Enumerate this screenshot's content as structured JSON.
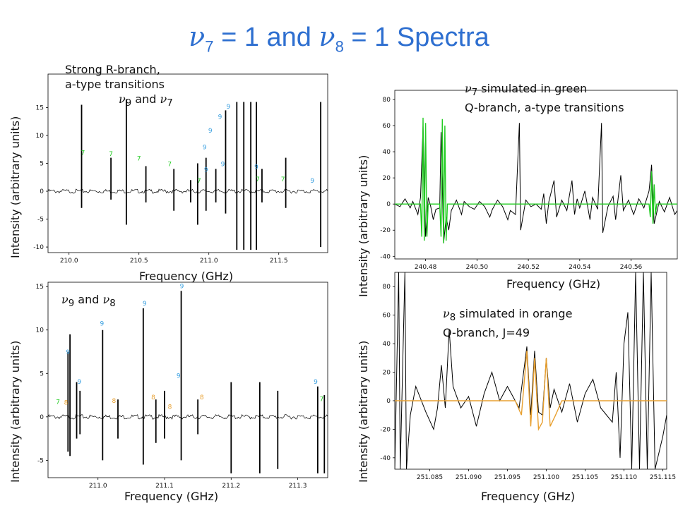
{
  "title": {
    "p1": "ν",
    "s1": "7",
    "p2": " = 1 and ",
    "p3": "ν",
    "s2": "8",
    "p4": " = 1   Spectra"
  },
  "annotations": {
    "a1_l1": "Strong R-branch,",
    "a1_l2": "a-type transitions",
    "a1_nu1": "ν",
    "a1_s1": "9",
    "a1_and": " and ",
    "a1_nu2": "ν",
    "a1_s2": "7",
    "a2_nu": "ν",
    "a2_s": "7",
    "a2_rest": " simulated in green",
    "a2_l2": "Q-branch, a-type transitions",
    "a3_nu1": "ν",
    "a3_s1": "9",
    "a3_and": " and ",
    "a3_nu2": "ν",
    "a3_s2": "8",
    "a4_nu": "ν",
    "a4_s": "8",
    "a4_rest": " simulated in orange",
    "a4_l2": "Q-branch, J=49"
  },
  "colors": {
    "title": "#2e6fd0",
    "green": "#22cc22",
    "orange": "#e8a030",
    "blue": "#3aa0e0",
    "trace": "#000000"
  },
  "chart_data": [
    {
      "type": "line",
      "id": "top-left",
      "xlabel": "Frequency (GHz)",
      "ylabel": "Intensity (arbitrary units)",
      "xlim": [
        209.85,
        211.85
      ],
      "ylim": [
        -11,
        21
      ],
      "xticks": [
        210.0,
        210.5,
        211.0,
        211.5
      ],
      "xtick_labels": [
        "210.0",
        "210.5",
        "211.0",
        "211.5"
      ],
      "yticks": [
        -10,
        -5,
        0,
        5,
        10,
        15
      ],
      "lines": [
        {
          "x": 210.09,
          "y": [
            -3,
            15.5
          ]
        },
        {
          "x": 210.3,
          "y": [
            -1.5,
            6
          ]
        },
        {
          "x": 210.41,
          "y": [
            -6,
            16.5
          ]
        },
        {
          "x": 210.55,
          "y": [
            -2,
            4.5
          ]
        },
        {
          "x": 210.75,
          "y": [
            -3.5,
            4
          ]
        },
        {
          "x": 210.87,
          "y": [
            -2,
            2
          ]
        },
        {
          "x": 210.92,
          "y": [
            -6,
            5
          ]
        },
        {
          "x": 210.98,
          "y": [
            -3.5,
            6
          ]
        },
        {
          "x": 211.05,
          "y": [
            -2,
            4
          ]
        },
        {
          "x": 211.12,
          "y": [
            -4,
            14.5
          ]
        },
        {
          "x": 211.2,
          "y": [
            -10.5,
            16
          ]
        },
        {
          "x": 211.25,
          "y": [
            -10.5,
            16
          ]
        },
        {
          "x": 211.3,
          "y": [
            -10.5,
            16
          ]
        },
        {
          "x": 211.34,
          "y": [
            -10.5,
            16
          ]
        },
        {
          "x": 211.38,
          "y": [
            -2,
            4
          ]
        },
        {
          "x": 211.55,
          "y": [
            -3,
            6
          ]
        },
        {
          "x": 211.8,
          "y": [
            -10,
            16
          ]
        }
      ],
      "labels": [
        {
          "t": "7",
          "x": 210.1,
          "y": 6.5,
          "c": "green"
        },
        {
          "t": "7",
          "x": 210.3,
          "y": 6.3,
          "c": "green"
        },
        {
          "t": "7",
          "x": 210.5,
          "y": 5.5,
          "c": "green"
        },
        {
          "t": "7",
          "x": 210.72,
          "y": 4.5,
          "c": "green"
        },
        {
          "t": "7",
          "x": 210.93,
          "y": 1.5,
          "c": "green"
        },
        {
          "t": "9",
          "x": 210.98,
          "y": 3.5,
          "c": "blue"
        },
        {
          "t": "9",
          "x": 210.97,
          "y": 7.5,
          "c": "blue"
        },
        {
          "t": "9",
          "x": 211.01,
          "y": 10.5,
          "c": "blue"
        },
        {
          "t": "9",
          "x": 211.08,
          "y": 13.0,
          "c": "blue"
        },
        {
          "t": "9",
          "x": 211.14,
          "y": 14.8,
          "c": "blue"
        },
        {
          "t": "9",
          "x": 211.1,
          "y": 4.5,
          "c": "blue"
        },
        {
          "t": "9",
          "x": 211.34,
          "y": 4.0,
          "c": "blue"
        },
        {
          "t": "7",
          "x": 211.35,
          "y": 1.8,
          "c": "green"
        },
        {
          "t": "7",
          "x": 211.53,
          "y": 1.8,
          "c": "green"
        },
        {
          "t": "9",
          "x": 211.74,
          "y": 1.5,
          "c": "blue"
        }
      ]
    },
    {
      "type": "line",
      "id": "bottom-left",
      "xlabel": "Frequency (GHz)",
      "ylabel": "Intensity (arbitrary units)",
      "xlim": [
        210.925,
        211.345
      ],
      "ylim": [
        -7,
        15.5
      ],
      "xticks": [
        211.0,
        211.1,
        211.2,
        211.3
      ],
      "xtick_labels": [
        "211.0",
        "211.1",
        "211.2",
        "211.3"
      ],
      "yticks": [
        -5,
        0,
        5,
        10,
        15
      ],
      "lines": [
        {
          "x": 210.955,
          "y": [
            -4,
            7.5
          ]
        },
        {
          "x": 210.958,
          "y": [
            -4.5,
            9.5
          ]
        },
        {
          "x": 210.968,
          "y": [
            -2.5,
            4
          ]
        },
        {
          "x": 210.973,
          "y": [
            -2,
            3
          ]
        },
        {
          "x": 211.007,
          "y": [
            -5,
            10
          ]
        },
        {
          "x": 211.03,
          "y": [
            -2.5,
            2
          ]
        },
        {
          "x": 211.068,
          "y": [
            -5.5,
            12.5
          ]
        },
        {
          "x": 211.087,
          "y": [
            -3,
            2
          ]
        },
        {
          "x": 211.1,
          "y": [
            -2.5,
            3
          ]
        },
        {
          "x": 211.125,
          "y": [
            -5,
            14.5
          ]
        },
        {
          "x": 211.15,
          "y": [
            -2,
            2
          ]
        },
        {
          "x": 211.2,
          "y": [
            -6.5,
            4
          ]
        },
        {
          "x": 211.243,
          "y": [
            -6.5,
            4
          ]
        },
        {
          "x": 211.27,
          "y": [
            -6,
            3
          ]
        },
        {
          "x": 211.33,
          "y": [
            -6.5,
            3.5
          ]
        },
        {
          "x": 211.34,
          "y": [
            -6.5,
            2.5
          ]
        }
      ],
      "labels": [
        {
          "t": "9",
          "x": 210.955,
          "y": 7.2,
          "c": "blue"
        },
        {
          "t": "9",
          "x": 210.972,
          "y": 3.8,
          "c": "blue"
        },
        {
          "t": "9",
          "x": 211.006,
          "y": 10.5,
          "c": "blue"
        },
        {
          "t": "9",
          "x": 211.07,
          "y": 12.8,
          "c": "blue"
        },
        {
          "t": "9",
          "x": 211.126,
          "y": 14.8,
          "c": "blue"
        },
        {
          "t": "9",
          "x": 211.121,
          "y": 4.5,
          "c": "blue"
        },
        {
          "t": "9",
          "x": 211.327,
          "y": 3.8,
          "c": "blue"
        },
        {
          "t": "7",
          "x": 210.94,
          "y": 1.5,
          "c": "green"
        },
        {
          "t": "7",
          "x": 211.336,
          "y": 1.8,
          "c": "green"
        },
        {
          "t": "8",
          "x": 210.952,
          "y": 1.4,
          "c": "orange"
        },
        {
          "t": "8",
          "x": 211.024,
          "y": 1.6,
          "c": "orange"
        },
        {
          "t": "8",
          "x": 211.083,
          "y": 2.0,
          "c": "orange"
        },
        {
          "t": "8",
          "x": 211.108,
          "y": 0.9,
          "c": "orange"
        },
        {
          "t": "8",
          "x": 211.156,
          "y": 2.0,
          "c": "orange"
        }
      ]
    },
    {
      "type": "line",
      "id": "top-right",
      "xlabel": "Frequency (GHz)",
      "ylabel": "Intensity (arbitrary units)",
      "xlim": [
        240.468,
        240.578
      ],
      "ylim": [
        -42,
        87
      ],
      "xticks": [
        240.48,
        240.5,
        240.52,
        240.54,
        240.56
      ],
      "xtick_labels": [
        "240.48",
        "240.50",
        "240.52",
        "240.54",
        "240.56"
      ],
      "yticks": [
        -40,
        -20,
        0,
        20,
        40,
        60,
        80
      ],
      "observed": [
        [
          240.468,
          0
        ],
        [
          240.47,
          -2
        ],
        [
          240.472,
          4
        ],
        [
          240.474,
          -3
        ],
        [
          240.475,
          2
        ],
        [
          240.477,
          -8
        ],
        [
          240.478,
          5
        ],
        [
          240.479,
          60
        ],
        [
          240.48,
          -25
        ],
        [
          240.481,
          5
        ],
        [
          240.482,
          -2
        ],
        [
          240.483,
          -12
        ],
        [
          240.484,
          -4
        ],
        [
          240.4855,
          -3
        ],
        [
          240.486,
          55
        ],
        [
          240.487,
          -30
        ],
        [
          240.488,
          -10
        ],
        [
          240.489,
          -20
        ],
        [
          240.49,
          -5
        ],
        [
          240.492,
          3
        ],
        [
          240.494,
          -8
        ],
        [
          240.495,
          2
        ],
        [
          240.497,
          -2
        ],
        [
          240.499,
          -4
        ],
        [
          240.501,
          2
        ],
        [
          240.503,
          -2
        ],
        [
          240.505,
          -10
        ],
        [
          240.506,
          -4
        ],
        [
          240.508,
          3
        ],
        [
          240.51,
          -2
        ],
        [
          240.512,
          -12
        ],
        [
          240.513,
          -5
        ],
        [
          240.515,
          -8
        ],
        [
          240.5165,
          62
        ],
        [
          240.517,
          -20
        ],
        [
          240.519,
          3
        ],
        [
          240.521,
          -2
        ],
        [
          240.523,
          0
        ],
        [
          240.525,
          -4
        ],
        [
          240.526,
          8
        ],
        [
          240.527,
          -15
        ],
        [
          240.528,
          2
        ],
        [
          240.53,
          18
        ],
        [
          240.531,
          -10
        ],
        [
          240.533,
          3
        ],
        [
          240.535,
          -5
        ],
        [
          240.537,
          18
        ],
        [
          240.538,
          -8
        ],
        [
          240.539,
          4
        ],
        [
          240.54,
          -3
        ],
        [
          240.542,
          10
        ],
        [
          240.544,
          -12
        ],
        [
          240.545,
          5
        ],
        [
          240.547,
          -4
        ],
        [
          240.5485,
          62
        ],
        [
          240.549,
          -22
        ],
        [
          240.551,
          -2
        ],
        [
          240.553,
          6
        ],
        [
          240.554,
          -12
        ],
        [
          240.556,
          22
        ],
        [
          240.557,
          -5
        ],
        [
          240.559,
          3
        ],
        [
          240.561,
          -8
        ],
        [
          240.563,
          4
        ],
        [
          240.565,
          -3
        ],
        [
          240.567,
          10
        ],
        [
          240.568,
          30
        ],
        [
          240.569,
          -15
        ],
        [
          240.571,
          2
        ],
        [
          240.573,
          -6
        ],
        [
          240.575,
          5
        ],
        [
          240.577,
          -8
        ],
        [
          240.578,
          -5
        ]
      ],
      "simulated": {
        "color": "green",
        "points": [
          [
            240.468,
            0
          ],
          [
            240.478,
            0
          ],
          [
            240.4785,
            -25
          ],
          [
            240.479,
            66
          ],
          [
            240.4795,
            -28
          ],
          [
            240.48,
            62
          ],
          [
            240.4805,
            -25
          ],
          [
            240.481,
            0
          ],
          [
            240.4855,
            0
          ],
          [
            240.486,
            -25
          ],
          [
            240.4865,
            65
          ],
          [
            240.487,
            -30
          ],
          [
            240.4875,
            60
          ],
          [
            240.488,
            -28
          ],
          [
            240.4885,
            0
          ],
          [
            240.567,
            0
          ],
          [
            240.5675,
            -10
          ],
          [
            240.568,
            25
          ],
          [
            240.5685,
            -15
          ],
          [
            240.569,
            15
          ],
          [
            240.5695,
            -8
          ],
          [
            240.57,
            0
          ],
          [
            240.578,
            0
          ]
        ]
      }
    },
    {
      "type": "line",
      "id": "bottom-right",
      "xlabel": "Frequency (GHz)",
      "ylabel": "Intensity (arbitrary units)",
      "xlim": [
        251.0805,
        251.1155
      ],
      "ylim": [
        -48,
        90
      ],
      "xticks": [
        251.085,
        251.09,
        251.095,
        251.1,
        251.105,
        251.11,
        251.115
      ],
      "xtick_labels": [
        "251.085",
        "251.090",
        "251.095",
        "251.100",
        "251.105",
        "251.110",
        "251.115"
      ],
      "yticks": [
        -40,
        -20,
        0,
        20,
        40,
        60,
        80
      ],
      "observed": [
        [
          251.0805,
          -48
        ],
        [
          251.081,
          90
        ],
        [
          251.0812,
          -48
        ],
        [
          251.0818,
          90
        ],
        [
          251.082,
          -48
        ],
        [
          251.0825,
          -10
        ],
        [
          251.0832,
          10
        ],
        [
          251.0845,
          -8
        ],
        [
          251.0855,
          -20
        ],
        [
          251.086,
          -5
        ],
        [
          251.0865,
          25
        ],
        [
          251.087,
          -5
        ],
        [
          251.0875,
          50
        ],
        [
          251.088,
          10
        ],
        [
          251.089,
          -5
        ],
        [
          251.09,
          3
        ],
        [
          251.091,
          -18
        ],
        [
          251.092,
          5
        ],
        [
          251.093,
          20
        ],
        [
          251.094,
          0
        ],
        [
          251.095,
          10
        ],
        [
          251.096,
          0
        ],
        [
          251.0965,
          -5
        ],
        [
          251.0975,
          38
        ],
        [
          251.098,
          -10
        ],
        [
          251.0985,
          35
        ],
        [
          251.099,
          -8
        ],
        [
          251.0995,
          -10
        ],
        [
          251.1,
          30
        ],
        [
          251.1005,
          -5
        ],
        [
          251.101,
          8
        ],
        [
          251.102,
          -8
        ],
        [
          251.103,
          12
        ],
        [
          251.104,
          -15
        ],
        [
          251.105,
          5
        ],
        [
          251.106,
          15
        ],
        [
          251.107,
          -5
        ],
        [
          251.1085,
          -15
        ],
        [
          251.109,
          20
        ],
        [
          251.1095,
          -40
        ],
        [
          251.11,
          40
        ],
        [
          251.1105,
          62
        ],
        [
          251.111,
          -48
        ],
        [
          251.1115,
          90
        ],
        [
          251.112,
          -48
        ],
        [
          251.1125,
          90
        ],
        [
          251.113,
          -48
        ],
        [
          251.1135,
          90
        ],
        [
          251.114,
          -48
        ],
        [
          251.115,
          -25
        ],
        [
          251.1155,
          -10
        ]
      ],
      "simulated": {
        "color": "orange",
        "points": [
          [
            251.0805,
            0
          ],
          [
            251.096,
            0
          ],
          [
            251.0968,
            -10
          ],
          [
            251.0975,
            35
          ],
          [
            251.098,
            -18
          ],
          [
            251.0985,
            30
          ],
          [
            251.099,
            -20
          ],
          [
            251.0995,
            -15
          ],
          [
            251.1,
            30
          ],
          [
            251.1005,
            -18
          ],
          [
            251.1012,
            -10
          ],
          [
            251.102,
            0
          ],
          [
            251.1155,
            0
          ]
        ]
      }
    }
  ]
}
